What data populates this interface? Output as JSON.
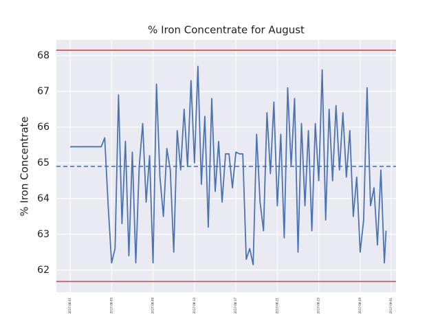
{
  "chart_data": {
    "type": "line",
    "title": "% Iron Concentrate for August",
    "ylabel": "% Iron Concentrate",
    "x": [
      "2017-08-01T00:00",
      "2017-08-04T00:00",
      "2017-08-04T08:00",
      "2017-08-04T16:00",
      "2017-08-05T00:00",
      "2017-08-05T08:00",
      "2017-08-05T16:00",
      "2017-08-06T00:00",
      "2017-08-06T08:00",
      "2017-08-06T16:00",
      "2017-08-07T00:00",
      "2017-08-07T08:00",
      "2017-08-07T16:00",
      "2017-08-08T00:00",
      "2017-08-08T08:00",
      "2017-08-08T16:00",
      "2017-08-09T00:00",
      "2017-08-09T08:00",
      "2017-08-09T16:00",
      "2017-08-10T00:00",
      "2017-08-10T08:00",
      "2017-08-10T16:00",
      "2017-08-11T00:00",
      "2017-08-11T08:00",
      "2017-08-11T16:00",
      "2017-08-12T00:00",
      "2017-08-12T08:00",
      "2017-08-12T16:00",
      "2017-08-13T00:00",
      "2017-08-13T08:00",
      "2017-08-13T16:00",
      "2017-08-14T00:00",
      "2017-08-14T08:00",
      "2017-08-14T16:00",
      "2017-08-15T00:00",
      "2017-08-15T08:00",
      "2017-08-15T16:00",
      "2017-08-16T00:00",
      "2017-08-16T08:00",
      "2017-08-16T16:00",
      "2017-08-17T00:00",
      "2017-08-17T08:00",
      "2017-08-17T16:00",
      "2017-08-18T00:00",
      "2017-08-18T08:00",
      "2017-08-18T16:00",
      "2017-08-19T00:00",
      "2017-08-19T08:00",
      "2017-08-19T16:00",
      "2017-08-20T00:00",
      "2017-08-20T08:00",
      "2017-08-20T16:00",
      "2017-08-21T00:00",
      "2017-08-21T08:00",
      "2017-08-21T16:00",
      "2017-08-22T00:00",
      "2017-08-22T08:00",
      "2017-08-22T16:00",
      "2017-08-23T00:00",
      "2017-08-23T08:00",
      "2017-08-23T16:00",
      "2017-08-24T00:00",
      "2017-08-24T08:00",
      "2017-08-24T16:00",
      "2017-08-25T00:00",
      "2017-08-25T08:00",
      "2017-08-25T16:00",
      "2017-08-26T00:00",
      "2017-08-26T08:00",
      "2017-08-26T16:00",
      "2017-08-27T00:00",
      "2017-08-27T08:00",
      "2017-08-27T16:00",
      "2017-08-28T00:00",
      "2017-08-28T08:00",
      "2017-08-28T16:00",
      "2017-08-29T00:00",
      "2017-08-29T08:00",
      "2017-08-29T16:00",
      "2017-08-30T00:00",
      "2017-08-30T08:00",
      "2017-08-30T16:00",
      "2017-08-31T00:00",
      "2017-08-31T08:00",
      "2017-08-31T12:00"
    ],
    "series": [
      {
        "color": "#4c72b0",
        "values": [
          65.45,
          65.45,
          65.7,
          63.8,
          62.2,
          62.6,
          66.9,
          63.3,
          65.6,
          62.4,
          65.3,
          62.2,
          64.9,
          66.1,
          63.9,
          65.2,
          62.2,
          67.2,
          64.6,
          63.5,
          65.4,
          64.8,
          62.5,
          65.9,
          64.8,
          66.5,
          64.9,
          67.3,
          65.0,
          67.7,
          64.4,
          66.3,
          63.2,
          66.8,
          64.2,
          65.6,
          63.9,
          65.25,
          65.25,
          64.3,
          65.3,
          65.25,
          65.25,
          62.3,
          62.6,
          62.15,
          65.8,
          63.9,
          63.1,
          66.4,
          64.7,
          66.7,
          63.8,
          65.8,
          62.9,
          67.1,
          64.9,
          66.8,
          62.5,
          66.1,
          63.8,
          65.9,
          63.1,
          66.1,
          64.5,
          67.6,
          63.4,
          66.5,
          64.5,
          66.6,
          64.8,
          66.4,
          64.6,
          65.9,
          63.5,
          64.6,
          62.5,
          63.4,
          67.1,
          63.8,
          64.3,
          62.7,
          64.8,
          62.2,
          63.1
        ]
      }
    ],
    "hlines": [
      {
        "value": 68.15,
        "color": "#c44e52",
        "style": "solid"
      },
      {
        "value": 61.68,
        "color": "#c44e52",
        "style": "solid"
      },
      {
        "value": 64.9,
        "color": "#4c72b0",
        "style": "dashed"
      }
    ],
    "xlim": [
      "2017-07-30T16:00",
      "2017-09-01T11:00"
    ],
    "xticks": [
      "2017-08-01",
      "2017-08-05",
      "2017-08-09",
      "2017-08-13",
      "2017-08-17",
      "2017-08-21",
      "2017-08-25",
      "2017-08-29",
      "2017-09-01"
    ],
    "ylim": [
      61.38,
      68.44
    ],
    "yticks": [
      62,
      63,
      64,
      65,
      66,
      67,
      68
    ],
    "grid": true
  }
}
